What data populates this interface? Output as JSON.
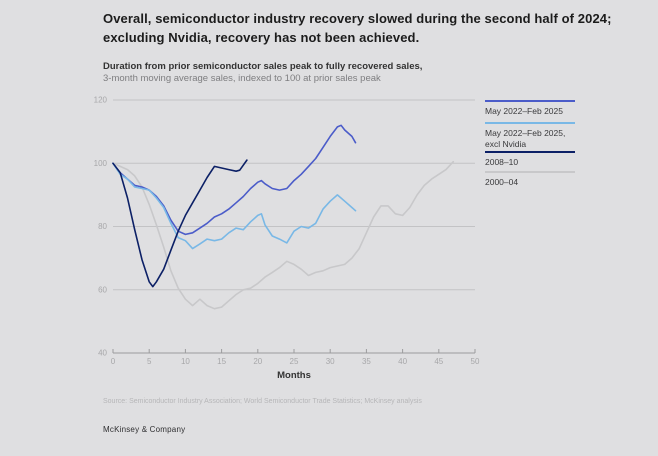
{
  "page": {
    "title": "Overall, semiconductor industry recovery slowed during the second half of 2024; excluding Nvidia, recovery has not been achieved.",
    "source": "Source: Semiconductor Industry Association; World Semiconductor Trade Statistics; McKinsey analysis",
    "footer": "McKinsey & Company"
  },
  "chart_data": {
    "type": "line",
    "title": "Duration from prior semiconductor sales peak to fully recovered sales,",
    "subtitle": "3-month moving average sales, indexed to 100 at prior sales peak",
    "xlabel": "Months",
    "ylabel": "",
    "xlim": [
      0,
      50
    ],
    "ylim": [
      40,
      120
    ],
    "x_ticks": [
      0,
      5,
      10,
      15,
      20,
      25,
      30,
      35,
      40,
      45,
      50
    ],
    "y_ticks": [
      40,
      60,
      80,
      100,
      120
    ],
    "grid": "horizontal",
    "legend_position": "right",
    "colors": {
      "grid": "#c3c3c5",
      "axis": "#9b9b9d",
      "tick_label": "#a7a7a9",
      "background": "#dfdfe1"
    },
    "series": [
      {
        "name": "May 2022–Feb 2025",
        "legend": [
          "May 2022–Feb 2025"
        ],
        "color": "#4b5cc9",
        "points": [
          [
            0,
            100
          ],
          [
            1,
            97
          ],
          [
            2,
            95
          ],
          [
            3,
            93
          ],
          [
            4,
            92.5
          ],
          [
            5,
            91.5
          ],
          [
            6,
            89.5
          ],
          [
            7,
            86.5
          ],
          [
            8,
            82
          ],
          [
            9,
            78.5
          ],
          [
            10,
            77.5
          ],
          [
            11,
            78
          ],
          [
            12,
            79.5
          ],
          [
            13,
            81
          ],
          [
            14,
            83
          ],
          [
            15,
            84
          ],
          [
            16,
            85.5
          ],
          [
            17,
            87.5
          ],
          [
            18,
            89.5
          ],
          [
            19,
            92
          ],
          [
            20,
            94
          ],
          [
            20.5,
            94.5
          ],
          [
            21,
            93.5
          ],
          [
            22,
            92
          ],
          [
            23,
            91.5
          ],
          [
            24,
            92
          ],
          [
            25,
            94.5
          ],
          [
            26,
            96.5
          ],
          [
            27,
            99
          ],
          [
            28,
            101.5
          ],
          [
            29,
            105
          ],
          [
            30,
            108.5
          ],
          [
            31,
            111.5
          ],
          [
            31.5,
            112
          ],
          [
            32,
            110.5
          ],
          [
            33,
            108.5
          ],
          [
            33.5,
            106.5
          ]
        ]
      },
      {
        "name": "May 2022–Feb 2025, excl Nvidia",
        "legend": [
          "May 2022–Feb 2025,",
          "excl Nvidia"
        ],
        "color": "#79b8e6",
        "points": [
          [
            0,
            100
          ],
          [
            1,
            96.5
          ],
          [
            2,
            95
          ],
          [
            3,
            92.5
          ],
          [
            4,
            92
          ],
          [
            5,
            91.5
          ],
          [
            6,
            89
          ],
          [
            7,
            86
          ],
          [
            8,
            81
          ],
          [
            9,
            76.5
          ],
          [
            10,
            75.5
          ],
          [
            11,
            73
          ],
          [
            12,
            74.5
          ],
          [
            13,
            76
          ],
          [
            14,
            75.5
          ],
          [
            15,
            76
          ],
          [
            16,
            78
          ],
          [
            17,
            79.5
          ],
          [
            18,
            79
          ],
          [
            19,
            81.5
          ],
          [
            20,
            83.5
          ],
          [
            20.5,
            84
          ],
          [
            21,
            80.5
          ],
          [
            22,
            77
          ],
          [
            23,
            76
          ],
          [
            24,
            74.8
          ],
          [
            25,
            78.5
          ],
          [
            26,
            80
          ],
          [
            27,
            79.5
          ],
          [
            28,
            81
          ],
          [
            29,
            85.5
          ],
          [
            30,
            88
          ],
          [
            31,
            90
          ],
          [
            32,
            88
          ],
          [
            33,
            86
          ],
          [
            33.5,
            85
          ]
        ]
      },
      {
        "name": "2008–10",
        "legend": [
          "2008–10"
        ],
        "color": "#0c2066",
        "points": [
          [
            0,
            100
          ],
          [
            1,
            97
          ],
          [
            2,
            89
          ],
          [
            3,
            79
          ],
          [
            4,
            69.5
          ],
          [
            5,
            62.5
          ],
          [
            5.5,
            61
          ],
          [
            6,
            62.5
          ],
          [
            7,
            66.5
          ],
          [
            8,
            72.5
          ],
          [
            9,
            78.5
          ],
          [
            10,
            83.5
          ],
          [
            11,
            87.5
          ],
          [
            12,
            91.5
          ],
          [
            13,
            95.5
          ],
          [
            14,
            99
          ],
          [
            15,
            98.5
          ],
          [
            16,
            98
          ],
          [
            17,
            97.5
          ],
          [
            17.5,
            97.8
          ],
          [
            18.5,
            101
          ]
        ]
      },
      {
        "name": "2000–04",
        "legend": [
          "2000–04"
        ],
        "color": "#c8c8ca",
        "points": [
          [
            0,
            100
          ],
          [
            1,
            99
          ],
          [
            2,
            98
          ],
          [
            3,
            96
          ],
          [
            4,
            92.5
          ],
          [
            5,
            87
          ],
          [
            6,
            80.5
          ],
          [
            7,
            73.5
          ],
          [
            8,
            66
          ],
          [
            9,
            60.5
          ],
          [
            10,
            57
          ],
          [
            11,
            55
          ],
          [
            12,
            57
          ],
          [
            13,
            55
          ],
          [
            14,
            54
          ],
          [
            15,
            54.5
          ],
          [
            16,
            56.5
          ],
          [
            17,
            58.5
          ],
          [
            18,
            60
          ],
          [
            19,
            60.5
          ],
          [
            20,
            62
          ],
          [
            21,
            64
          ],
          [
            22,
            65.5
          ],
          [
            23,
            67
          ],
          [
            24,
            69
          ],
          [
            25,
            68
          ],
          [
            26,
            66.5
          ],
          [
            27,
            64.5
          ],
          [
            28,
            65.5
          ],
          [
            29,
            66
          ],
          [
            30,
            67
          ],
          [
            31,
            67.5
          ],
          [
            32,
            68
          ],
          [
            33,
            70
          ],
          [
            34,
            73
          ],
          [
            35,
            78
          ],
          [
            36,
            83
          ],
          [
            37,
            86.5
          ],
          [
            38,
            86.5
          ],
          [
            39,
            84
          ],
          [
            40,
            83.5
          ],
          [
            41,
            86
          ],
          [
            42,
            90
          ],
          [
            43,
            93
          ],
          [
            44,
            95
          ],
          [
            45,
            96.5
          ],
          [
            46,
            98
          ],
          [
            47,
            100.5
          ]
        ]
      }
    ]
  }
}
